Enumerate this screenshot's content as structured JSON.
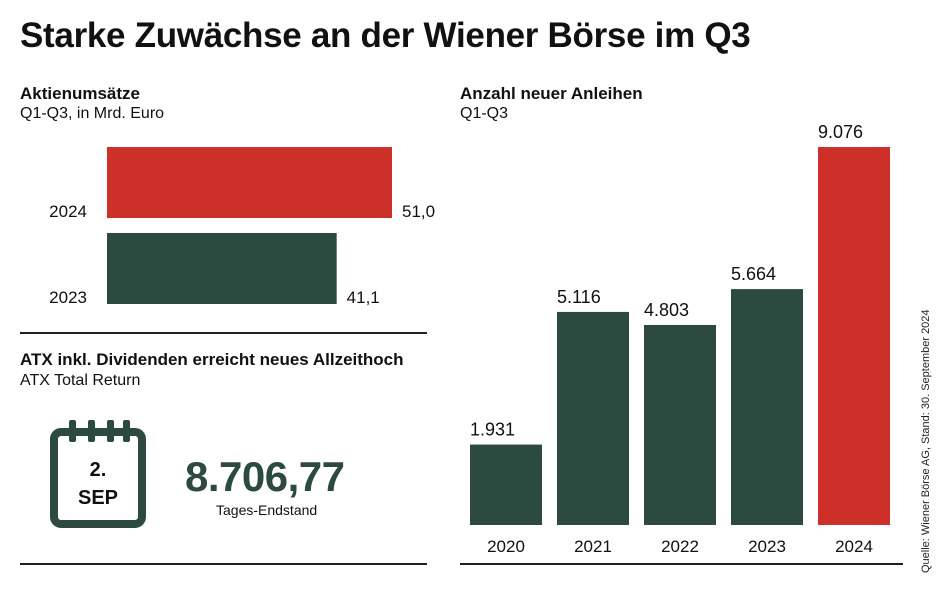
{
  "title": "Starke Zuwächse an der Wiener Börse im Q3",
  "source": "Quelle: Wiener Börse AG, Stand: 30. September 2024",
  "colors": {
    "dark_green": "#2d4a41",
    "red": "#cc3028"
  },
  "stock_turnover": {
    "title": "Aktienumsätze",
    "subtitle": "Q1-Q3, in Mrd. Euro"
  },
  "atx": {
    "title": "ATX inkl. Dividenden erreicht neues Allzeithoch",
    "subtitle": "ATX Total Return",
    "calendar_day": "2.",
    "calendar_month": "SEP",
    "value": "8.706,77",
    "caption": "Tages-Endstand"
  },
  "bonds": {
    "title": "Anzahl neuer Anleihen",
    "subtitle": "Q1-Q3"
  },
  "chart_data": [
    {
      "type": "bar",
      "orientation": "horizontal",
      "title": "Aktienumsätze",
      "subtitle": "Q1-Q3, in Mrd. Euro",
      "categories": [
        "2024",
        "2023"
      ],
      "values": [
        51.0,
        41.1
      ],
      "value_labels": [
        "51,0",
        "41,1"
      ],
      "colors": [
        "#cc3028",
        "#2d4a41"
      ],
      "xlim": [
        0,
        51.0
      ]
    },
    {
      "type": "bar",
      "orientation": "vertical",
      "title": "Anzahl neuer Anleihen",
      "subtitle": "Q1-Q3",
      "categories": [
        "2020",
        "2021",
        "2022",
        "2023",
        "2024"
      ],
      "values": [
        1931,
        5116,
        4803,
        5664,
        9076
      ],
      "value_labels": [
        "1.931",
        "5.116",
        "4.803",
        "5.664",
        "9.076"
      ],
      "colors": [
        "#2d4a41",
        "#2d4a41",
        "#2d4a41",
        "#2d4a41",
        "#cc3028"
      ],
      "ylim": [
        0,
        9076
      ]
    }
  ]
}
